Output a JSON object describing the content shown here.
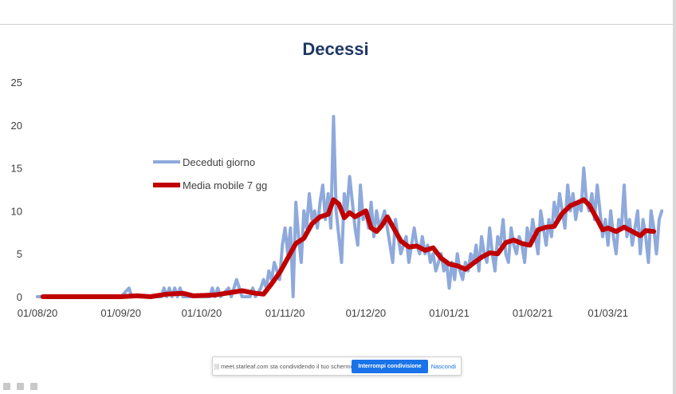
{
  "chart_data": {
    "type": "line",
    "title": "Decessi",
    "ylim": [
      0,
      25
    ],
    "yticks": [
      0,
      5,
      10,
      15,
      20,
      25
    ],
    "xlim": [
      "2020-08-01",
      "2021-03-23"
    ],
    "xticks": [
      {
        "date": "2020-08-01",
        "label": "01/08/20"
      },
      {
        "date": "2020-09-01",
        "label": "01/09/20"
      },
      {
        "date": "2020-10-01",
        "label": "01/10/20"
      },
      {
        "date": "2020-11-01",
        "label": "01/11/20"
      },
      {
        "date": "2020-12-01",
        "label": "01/12/20"
      },
      {
        "date": "2021-01-01",
        "label": "01/01/21"
      },
      {
        "date": "2021-02-01",
        "label": "01/02/21"
      },
      {
        "date": "2021-03-01",
        "label": "01/03/21"
      }
    ],
    "grid": false,
    "legend_position": "upper-left",
    "series": [
      {
        "name": "Deceduti giorno",
        "color": "#8ea9db",
        "points": [
          [
            "2020-08-01",
            0
          ],
          [
            "2020-09-01",
            0
          ],
          [
            "2020-09-04",
            1
          ],
          [
            "2020-09-05",
            0
          ],
          [
            "2020-09-16",
            0
          ],
          [
            "2020-09-17",
            1
          ],
          [
            "2020-09-18",
            0
          ],
          [
            "2020-09-19",
            1
          ],
          [
            "2020-09-20",
            0
          ],
          [
            "2020-09-21",
            1
          ],
          [
            "2020-09-22",
            0
          ],
          [
            "2020-09-23",
            1
          ],
          [
            "2020-09-24",
            0
          ],
          [
            "2020-10-04",
            0
          ],
          [
            "2020-10-05",
            1
          ],
          [
            "2020-10-06",
            0
          ],
          [
            "2020-10-07",
            1
          ],
          [
            "2020-10-08",
            0
          ],
          [
            "2020-10-11",
            1
          ],
          [
            "2020-10-12",
            0
          ],
          [
            "2020-10-13",
            1
          ],
          [
            "2020-10-14",
            2
          ],
          [
            "2020-10-15",
            1
          ],
          [
            "2020-10-16",
            0
          ],
          [
            "2020-10-19",
            0
          ],
          [
            "2020-10-20",
            1
          ],
          [
            "2020-10-21",
            0
          ],
          [
            "2020-10-23",
            1
          ],
          [
            "2020-10-24",
            2
          ],
          [
            "2020-10-25",
            1
          ],
          [
            "2020-10-26",
            3
          ],
          [
            "2020-10-27",
            2
          ],
          [
            "2020-10-28",
            4
          ],
          [
            "2020-10-29",
            3
          ],
          [
            "2020-10-30",
            2
          ],
          [
            "2020-10-31",
            6
          ],
          [
            "2020-11-01",
            8
          ],
          [
            "2020-11-02",
            5
          ],
          [
            "2020-11-03",
            8
          ],
          [
            "2020-11-04",
            0
          ],
          [
            "2020-11-05",
            11
          ],
          [
            "2020-11-06",
            7
          ],
          [
            "2020-11-07",
            4
          ],
          [
            "2020-11-08",
            10
          ],
          [
            "2020-11-09",
            8
          ],
          [
            "2020-11-10",
            12
          ],
          [
            "2020-11-11",
            9
          ],
          [
            "2020-11-12",
            10
          ],
          [
            "2020-11-13",
            8
          ],
          [
            "2020-11-14",
            11
          ],
          [
            "2020-11-15",
            13
          ],
          [
            "2020-11-16",
            9
          ],
          [
            "2020-11-17",
            12
          ],
          [
            "2020-11-18",
            8
          ],
          [
            "2020-11-19",
            21
          ],
          [
            "2020-11-20",
            10
          ],
          [
            "2020-11-21",
            7
          ],
          [
            "2020-11-22",
            4
          ],
          [
            "2020-11-23",
            12
          ],
          [
            "2020-11-24",
            10
          ],
          [
            "2020-11-25",
            14
          ],
          [
            "2020-11-26",
            11
          ],
          [
            "2020-11-27",
            8
          ],
          [
            "2020-11-28",
            6
          ],
          [
            "2020-11-29",
            13
          ],
          [
            "2020-11-30",
            9
          ],
          [
            "2020-12-01",
            10
          ],
          [
            "2020-12-02",
            8
          ],
          [
            "2020-12-03",
            11
          ],
          [
            "2020-12-04",
            7
          ],
          [
            "2020-12-05",
            10
          ],
          [
            "2020-12-06",
            8
          ],
          [
            "2020-12-07",
            9
          ],
          [
            "2020-12-08",
            10
          ],
          [
            "2020-12-09",
            8
          ],
          [
            "2020-12-10",
            6
          ],
          [
            "2020-12-11",
            4
          ],
          [
            "2020-12-12",
            9
          ],
          [
            "2020-12-13",
            7
          ],
          [
            "2020-12-14",
            5
          ],
          [
            "2020-12-15",
            6
          ],
          [
            "2020-12-16",
            7
          ],
          [
            "2020-12-17",
            4
          ],
          [
            "2020-12-18",
            6
          ],
          [
            "2020-12-19",
            8
          ],
          [
            "2020-12-20",
            6
          ],
          [
            "2020-12-21",
            5
          ],
          [
            "2020-12-22",
            7
          ],
          [
            "2020-12-23",
            5
          ],
          [
            "2020-12-24",
            6
          ],
          [
            "2020-12-25",
            4
          ],
          [
            "2020-12-26",
            5
          ],
          [
            "2020-12-27",
            3
          ],
          [
            "2020-12-28",
            4
          ],
          [
            "2020-12-29",
            5
          ],
          [
            "2020-12-30",
            3
          ],
          [
            "2020-12-31",
            4
          ],
          [
            "2021-01-01",
            1
          ],
          [
            "2021-01-02",
            4
          ],
          [
            "2021-01-03",
            2
          ],
          [
            "2021-01-04",
            5
          ],
          [
            "2021-01-05",
            3
          ],
          [
            "2021-01-06",
            2
          ],
          [
            "2021-01-07",
            4
          ],
          [
            "2021-01-08",
            3
          ],
          [
            "2021-01-09",
            5
          ],
          [
            "2021-01-10",
            4
          ],
          [
            "2021-01-11",
            6
          ],
          [
            "2021-01-12",
            3
          ],
          [
            "2021-01-13",
            7
          ],
          [
            "2021-01-14",
            5
          ],
          [
            "2021-01-15",
            4
          ],
          [
            "2021-01-16",
            8
          ],
          [
            "2021-01-17",
            5
          ],
          [
            "2021-01-18",
            3
          ],
          [
            "2021-01-19",
            7
          ],
          [
            "2021-01-20",
            6
          ],
          [
            "2021-01-21",
            9
          ],
          [
            "2021-01-22",
            5
          ],
          [
            "2021-01-23",
            4
          ],
          [
            "2021-01-24",
            8
          ],
          [
            "2021-01-25",
            6
          ],
          [
            "2021-01-26",
            5
          ],
          [
            "2021-01-27",
            7
          ],
          [
            "2021-01-28",
            6
          ],
          [
            "2021-01-29",
            4
          ],
          [
            "2021-01-30",
            8
          ],
          [
            "2021-01-31",
            6
          ],
          [
            "2021-02-01",
            9
          ],
          [
            "2021-02-02",
            7
          ],
          [
            "2021-02-03",
            5
          ],
          [
            "2021-02-04",
            10
          ],
          [
            "2021-02-05",
            8
          ],
          [
            "2021-02-06",
            6
          ],
          [
            "2021-02-07",
            9
          ],
          [
            "2021-02-08",
            7
          ],
          [
            "2021-02-09",
            11
          ],
          [
            "2021-02-10",
            9
          ],
          [
            "2021-02-11",
            12
          ],
          [
            "2021-02-12",
            10
          ],
          [
            "2021-02-13",
            8
          ],
          [
            "2021-02-14",
            13
          ],
          [
            "2021-02-15",
            10
          ],
          [
            "2021-02-16",
            12
          ],
          [
            "2021-02-17",
            9
          ],
          [
            "2021-02-18",
            11
          ],
          [
            "2021-02-19",
            10
          ],
          [
            "2021-02-20",
            15
          ],
          [
            "2021-02-21",
            11
          ],
          [
            "2021-02-22",
            10
          ],
          [
            "2021-02-23",
            12
          ],
          [
            "2021-02-24",
            9
          ],
          [
            "2021-02-25",
            13
          ],
          [
            "2021-02-26",
            10
          ],
          [
            "2021-02-27",
            7
          ],
          [
            "2021-02-28",
            9
          ],
          [
            "2021-03-01",
            6
          ],
          [
            "2021-03-02",
            10
          ],
          [
            "2021-03-03",
            7
          ],
          [
            "2021-03-04",
            5
          ],
          [
            "2021-03-05",
            9
          ],
          [
            "2021-03-06",
            8
          ],
          [
            "2021-03-07",
            13
          ],
          [
            "2021-03-08",
            7
          ],
          [
            "2021-03-09",
            9
          ],
          [
            "2021-03-10",
            6
          ],
          [
            "2021-03-11",
            8
          ],
          [
            "2021-03-12",
            10
          ],
          [
            "2021-03-13",
            5
          ],
          [
            "2021-03-14",
            9
          ],
          [
            "2021-03-15",
            7
          ],
          [
            "2021-03-16",
            4
          ],
          [
            "2021-03-17",
            10
          ],
          [
            "2021-03-18",
            8
          ],
          [
            "2021-03-19",
            5
          ],
          [
            "2021-03-20",
            9
          ],
          [
            "2021-03-21",
            10
          ]
        ]
      },
      {
        "name": "Media mobile 7 gg",
        "color": "#c00000",
        "points": [
          [
            "2020-08-03",
            0
          ],
          [
            "2020-09-01",
            0
          ],
          [
            "2020-09-07",
            0.1
          ],
          [
            "2020-09-12",
            0
          ],
          [
            "2020-09-18",
            0.3
          ],
          [
            "2020-09-24",
            0.4
          ],
          [
            "2020-09-28",
            0.1
          ],
          [
            "2020-10-06",
            0.2
          ],
          [
            "2020-10-12",
            0.5
          ],
          [
            "2020-10-16",
            0.7
          ],
          [
            "2020-10-21",
            0.4
          ],
          [
            "2020-10-24",
            0.3
          ],
          [
            "2020-10-27",
            1.5
          ],
          [
            "2020-10-30",
            2.8
          ],
          [
            "2020-11-02",
            4.5
          ],
          [
            "2020-11-05",
            6.2
          ],
          [
            "2020-11-08",
            6.8
          ],
          [
            "2020-11-11",
            8.5
          ],
          [
            "2020-11-14",
            9.3
          ],
          [
            "2020-11-17",
            9.6
          ],
          [
            "2020-11-19",
            11.3
          ],
          [
            "2020-11-21",
            10.8
          ],
          [
            "2020-11-23",
            9.2
          ],
          [
            "2020-11-25",
            9.8
          ],
          [
            "2020-11-27",
            9.3
          ],
          [
            "2020-12-01",
            10.0
          ],
          [
            "2020-12-03",
            8.0
          ],
          [
            "2020-12-05",
            7.6
          ],
          [
            "2020-12-07",
            8.3
          ],
          [
            "2020-12-09",
            9.3
          ],
          [
            "2020-12-11",
            8.2
          ],
          [
            "2020-12-14",
            6.5
          ],
          [
            "2020-12-17",
            5.8
          ],
          [
            "2020-12-20",
            5.9
          ],
          [
            "2020-12-23",
            5.4
          ],
          [
            "2020-12-26",
            5.7
          ],
          [
            "2020-12-29",
            4.5
          ],
          [
            "2021-01-01",
            3.8
          ],
          [
            "2021-01-04",
            3.6
          ],
          [
            "2021-01-07",
            3.2
          ],
          [
            "2021-01-10",
            3.9
          ],
          [
            "2021-01-13",
            4.6
          ],
          [
            "2021-01-16",
            5.1
          ],
          [
            "2021-01-19",
            5.0
          ],
          [
            "2021-01-22",
            6.3
          ],
          [
            "2021-01-25",
            6.6
          ],
          [
            "2021-01-28",
            6.2
          ],
          [
            "2021-01-31",
            6.0
          ],
          [
            "2021-02-03",
            7.8
          ],
          [
            "2021-02-06",
            8.1
          ],
          [
            "2021-02-09",
            8.2
          ],
          [
            "2021-02-12",
            9.7
          ],
          [
            "2021-02-15",
            10.6
          ],
          [
            "2021-02-18",
            11.0
          ],
          [
            "2021-02-20",
            11.3
          ],
          [
            "2021-02-22",
            10.7
          ],
          [
            "2021-02-25",
            9.0
          ],
          [
            "2021-02-27",
            7.8
          ],
          [
            "2021-03-01",
            8.0
          ],
          [
            "2021-03-04",
            7.6
          ],
          [
            "2021-03-07",
            8.1
          ],
          [
            "2021-03-10",
            7.6
          ],
          [
            "2021-03-13",
            7.1
          ],
          [
            "2021-03-15",
            7.7
          ],
          [
            "2021-03-18",
            7.6
          ]
        ]
      }
    ]
  },
  "share_bar": {
    "grip": "|||",
    "message": "meet.starleaf.com sta condividendo il tuo schermo.",
    "stop_label": "Interrompi condivisione",
    "hide_label": "Nascondi"
  }
}
